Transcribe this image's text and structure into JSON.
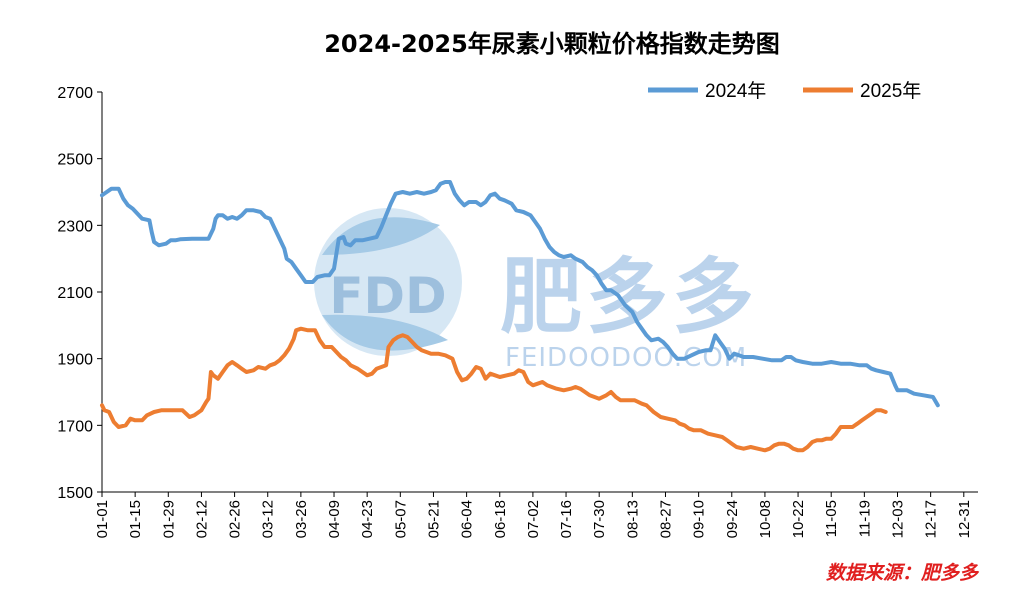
{
  "chart_data": {
    "type": "line",
    "title": "2024-2025年尿素小颗粒价格指数走势图",
    "xlabel": "",
    "ylabel": "",
    "ylim": [
      1500,
      2700
    ],
    "yticks": [
      1500,
      1700,
      1900,
      2100,
      2300,
      2500,
      2700
    ],
    "xticks": [
      "01-01",
      "01-15",
      "01-29",
      "02-12",
      "02-26",
      "03-12",
      "03-26",
      "04-09",
      "04-23",
      "05-07",
      "05-21",
      "06-04",
      "06-18",
      "07-02",
      "07-16",
      "07-30",
      "08-13",
      "08-27",
      "09-10",
      "09-24",
      "10-08",
      "10-22",
      "11-05",
      "11-19",
      "12-03",
      "12-17",
      "12-31"
    ],
    "x_domain_days": [
      0,
      370
    ],
    "grid": false,
    "legend_position": "top-right",
    "series": [
      {
        "name": "2024年",
        "color": "#5B9BD5",
        "points": [
          [
            0,
            2390
          ],
          [
            2,
            2400
          ],
          [
            4,
            2410
          ],
          [
            7,
            2410
          ],
          [
            9,
            2380
          ],
          [
            11,
            2360
          ],
          [
            13,
            2350
          ],
          [
            15,
            2335
          ],
          [
            17,
            2320
          ],
          [
            20,
            2315
          ],
          [
            21,
            2280
          ],
          [
            22,
            2250
          ],
          [
            24,
            2240
          ],
          [
            27,
            2245
          ],
          [
            29,
            2255
          ],
          [
            31,
            2255
          ],
          [
            33,
            2258
          ],
          [
            38,
            2260
          ],
          [
            45,
            2260
          ],
          [
            47,
            2290
          ],
          [
            48,
            2320
          ],
          [
            49,
            2330
          ],
          [
            51,
            2330
          ],
          [
            53,
            2320
          ],
          [
            55,
            2325
          ],
          [
            57,
            2320
          ],
          [
            59,
            2330
          ],
          [
            61,
            2345
          ],
          [
            64,
            2345
          ],
          [
            67,
            2340
          ],
          [
            69,
            2325
          ],
          [
            71,
            2320
          ],
          [
            73,
            2290
          ],
          [
            75,
            2260
          ],
          [
            77,
            2230
          ],
          [
            78,
            2200
          ],
          [
            80,
            2190
          ],
          [
            82,
            2170
          ],
          [
            84,
            2150
          ],
          [
            86,
            2130
          ],
          [
            89,
            2130
          ],
          [
            91,
            2145
          ],
          [
            94,
            2150
          ],
          [
            96,
            2150
          ],
          [
            98,
            2170
          ],
          [
            100,
            2260
          ],
          [
            102,
            2265
          ],
          [
            103,
            2245
          ],
          [
            105,
            2240
          ],
          [
            107,
            2255
          ],
          [
            110,
            2255
          ],
          [
            113,
            2260
          ],
          [
            116,
            2265
          ],
          [
            118,
            2295
          ],
          [
            120,
            2330
          ],
          [
            122,
            2365
          ],
          [
            124,
            2395
          ],
          [
            127,
            2400
          ],
          [
            130,
            2395
          ],
          [
            133,
            2400
          ],
          [
            136,
            2395
          ],
          [
            139,
            2400
          ],
          [
            141,
            2405
          ],
          [
            143,
            2425
          ],
          [
            145,
            2430
          ],
          [
            147,
            2430
          ],
          [
            149,
            2395
          ],
          [
            151,
            2375
          ],
          [
            153,
            2360
          ],
          [
            155,
            2370
          ],
          [
            158,
            2370
          ],
          [
            160,
            2360
          ],
          [
            162,
            2370
          ],
          [
            164,
            2390
          ],
          [
            166,
            2395
          ],
          [
            168,
            2380
          ],
          [
            170,
            2375
          ],
          [
            173,
            2365
          ],
          [
            175,
            2345
          ],
          [
            178,
            2340
          ],
          [
            181,
            2330
          ],
          [
            183,
            2310
          ],
          [
            185,
            2290
          ],
          [
            187,
            2260
          ],
          [
            189,
            2235
          ],
          [
            191,
            2220
          ],
          [
            193,
            2210
          ],
          [
            195,
            2205
          ],
          [
            198,
            2210
          ],
          [
            200,
            2200
          ],
          [
            203,
            2190
          ],
          [
            205,
            2175
          ],
          [
            207,
            2165
          ],
          [
            209,
            2150
          ],
          [
            211,
            2125
          ],
          [
            213,
            2105
          ],
          [
            215,
            2105
          ],
          [
            218,
            2090
          ],
          [
            221,
            2060
          ],
          [
            224,
            2040
          ],
          [
            226,
            2010
          ],
          [
            228,
            1990
          ],
          [
            230,
            1970
          ],
          [
            232,
            1955
          ],
          [
            235,
            1960
          ],
          [
            237,
            1950
          ],
          [
            239,
            1935
          ],
          [
            241,
            1915
          ],
          [
            243,
            1900
          ],
          [
            246,
            1900
          ],
          [
            249,
            1910
          ],
          [
            252,
            1920
          ],
          [
            255,
            1925
          ],
          [
            257,
            1925
          ],
          [
            259,
            1970
          ],
          [
            261,
            1950
          ],
          [
            263,
            1930
          ],
          [
            265,
            1900
          ],
          [
            267,
            1915
          ],
          [
            269,
            1910
          ],
          [
            271,
            1905
          ],
          [
            275,
            1905
          ],
          [
            279,
            1900
          ],
          [
            283,
            1895
          ],
          [
            287,
            1895
          ],
          [
            289,
            1905
          ],
          [
            291,
            1905
          ],
          [
            293,
            1895
          ],
          [
            296,
            1890
          ],
          [
            300,
            1885
          ],
          [
            304,
            1885
          ],
          [
            308,
            1890
          ],
          [
            312,
            1885
          ],
          [
            316,
            1885
          ],
          [
            320,
            1880
          ],
          [
            323,
            1880
          ],
          [
            325,
            1870
          ],
          [
            327,
            1865
          ],
          [
            330,
            1860
          ],
          [
            333,
            1855
          ],
          [
            335,
            1820
          ],
          [
            336,
            1805
          ],
          [
            340,
            1805
          ],
          [
            343,
            1795
          ],
          [
            347,
            1790
          ],
          [
            351,
            1785
          ],
          [
            353,
            1760
          ]
        ]
      },
      {
        "name": "2025年",
        "color": "#ED7D31",
        "points": [
          [
            0,
            1760
          ],
          [
            1,
            1745
          ],
          [
            3,
            1740
          ],
          [
            5,
            1710
          ],
          [
            7,
            1695
          ],
          [
            10,
            1700
          ],
          [
            12,
            1720
          ],
          [
            14,
            1715
          ],
          [
            17,
            1715
          ],
          [
            19,
            1730
          ],
          [
            22,
            1740
          ],
          [
            25,
            1745
          ],
          [
            34,
            1745
          ],
          [
            37,
            1725
          ],
          [
            39,
            1730
          ],
          [
            42,
            1745
          ],
          [
            44,
            1770
          ],
          [
            45,
            1780
          ],
          [
            46,
            1860
          ],
          [
            47,
            1850
          ],
          [
            49,
            1840
          ],
          [
            51,
            1860
          ],
          [
            53,
            1880
          ],
          [
            55,
            1890
          ],
          [
            57,
            1880
          ],
          [
            59,
            1870
          ],
          [
            61,
            1860
          ],
          [
            64,
            1865
          ],
          [
            66,
            1875
          ],
          [
            69,
            1870
          ],
          [
            71,
            1880
          ],
          [
            73,
            1885
          ],
          [
            75,
            1895
          ],
          [
            77,
            1910
          ],
          [
            79,
            1930
          ],
          [
            81,
            1960
          ],
          [
            82,
            1985
          ],
          [
            84,
            1990
          ],
          [
            87,
            1985
          ],
          [
            90,
            1985
          ],
          [
            92,
            1955
          ],
          [
            94,
            1935
          ],
          [
            97,
            1935
          ],
          [
            99,
            1920
          ],
          [
            101,
            1905
          ],
          [
            103,
            1895
          ],
          [
            105,
            1880
          ],
          [
            108,
            1870
          ],
          [
            110,
            1860
          ],
          [
            112,
            1850
          ],
          [
            114,
            1855
          ],
          [
            116,
            1870
          ],
          [
            118,
            1875
          ],
          [
            120,
            1880
          ],
          [
            121,
            1935
          ],
          [
            123,
            1955
          ],
          [
            125,
            1965
          ],
          [
            127,
            1970
          ],
          [
            129,
            1965
          ],
          [
            131,
            1950
          ],
          [
            133,
            1935
          ],
          [
            135,
            1925
          ],
          [
            137,
            1920
          ],
          [
            139,
            1915
          ],
          [
            142,
            1915
          ],
          [
            145,
            1910
          ],
          [
            148,
            1900
          ],
          [
            150,
            1860
          ],
          [
            152,
            1835
          ],
          [
            154,
            1840
          ],
          [
            156,
            1855
          ],
          [
            158,
            1875
          ],
          [
            160,
            1870
          ],
          [
            162,
            1840
          ],
          [
            164,
            1855
          ],
          [
            166,
            1850
          ],
          [
            168,
            1845
          ],
          [
            171,
            1850
          ],
          [
            174,
            1855
          ],
          [
            176,
            1865
          ],
          [
            178,
            1860
          ],
          [
            180,
            1830
          ],
          [
            182,
            1820
          ],
          [
            184,
            1825
          ],
          [
            186,
            1830
          ],
          [
            188,
            1820
          ],
          [
            190,
            1815
          ],
          [
            192,
            1810
          ],
          [
            195,
            1805
          ],
          [
            198,
            1810
          ],
          [
            200,
            1815
          ],
          [
            202,
            1810
          ],
          [
            204,
            1800
          ],
          [
            206,
            1790
          ],
          [
            208,
            1785
          ],
          [
            210,
            1780
          ],
          [
            213,
            1790
          ],
          [
            215,
            1800
          ],
          [
            217,
            1785
          ],
          [
            219,
            1775
          ],
          [
            222,
            1775
          ],
          [
            225,
            1775
          ],
          [
            228,
            1765
          ],
          [
            230,
            1760
          ],
          [
            233,
            1740
          ],
          [
            236,
            1725
          ],
          [
            239,
            1720
          ],
          [
            242,
            1715
          ],
          [
            244,
            1705
          ],
          [
            246,
            1700
          ],
          [
            248,
            1690
          ],
          [
            250,
            1685
          ],
          [
            253,
            1685
          ],
          [
            256,
            1675
          ],
          [
            259,
            1670
          ],
          [
            262,
            1665
          ],
          [
            264,
            1655
          ],
          [
            266,
            1645
          ],
          [
            268,
            1635
          ],
          [
            271,
            1630
          ],
          [
            274,
            1635
          ],
          [
            277,
            1630
          ],
          [
            280,
            1625
          ],
          [
            282,
            1630
          ],
          [
            284,
            1640
          ],
          [
            286,
            1645
          ],
          [
            288,
            1645
          ],
          [
            290,
            1640
          ],
          [
            292,
            1630
          ],
          [
            294,
            1625
          ],
          [
            296,
            1625
          ],
          [
            298,
            1635
          ],
          [
            300,
            1650
          ],
          [
            302,
            1655
          ],
          [
            304,
            1655
          ],
          [
            306,
            1660
          ],
          [
            308,
            1660
          ],
          [
            310,
            1675
          ],
          [
            312,
            1695
          ],
          [
            314,
            1695
          ],
          [
            317,
            1695
          ],
          [
            319,
            1705
          ],
          [
            321,
            1715
          ],
          [
            323,
            1725
          ],
          [
            325,
            1735
          ],
          [
            327,
            1745
          ],
          [
            329,
            1745
          ],
          [
            331,
            1740
          ]
        ]
      }
    ],
    "source_note": "数据来源：肥多多"
  },
  "watermark": {
    "logo_text": "FDD",
    "cn_text": "肥多多",
    "en_text": "FEIDOODOO.COM"
  }
}
